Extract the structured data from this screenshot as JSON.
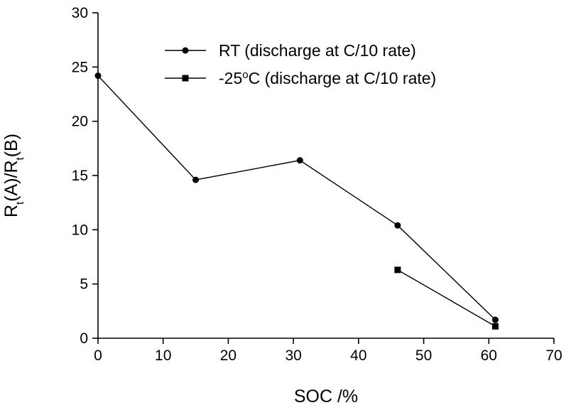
{
  "chart_data": {
    "type": "line",
    "xlabel": "SOC /%",
    "ylabel": {
      "parts": [
        {
          "text": "R",
          "sub": false
        },
        {
          "text": "t",
          "sub": true
        },
        {
          "text": "(A)/R",
          "sub": false
        },
        {
          "text": "t",
          "sub": true
        },
        {
          "text": "(B)",
          "sub": false
        }
      ]
    },
    "xlim": [
      0,
      70
    ],
    "ylim": [
      0,
      30
    ],
    "xticks": [
      "0",
      "10",
      "20",
      "30",
      "40",
      "50",
      "60",
      "70"
    ],
    "yticks": [
      "0",
      "5",
      "10",
      "15",
      "20",
      "25",
      "30"
    ],
    "grid": false,
    "legend_position": "top-right",
    "series": [
      {
        "name": "RT (discharge at C/10 rate)",
        "name_parts": [
          {
            "text": "RT (discharge at C/10 rate)",
            "sup": false
          }
        ],
        "marker": "circle",
        "color": "#000000",
        "x": [
          0,
          15,
          31,
          46,
          61
        ],
        "y": [
          24.2,
          14.6,
          16.4,
          10.4,
          1.7
        ]
      },
      {
        "name": "-25°C (discharge at C/10 rate)",
        "name_parts": [
          {
            "text": "-25",
            "sup": false
          },
          {
            "text": "o",
            "sup": true
          },
          {
            "text": "C (discharge at C/10 rate)",
            "sup": false
          }
        ],
        "marker": "square",
        "color": "#000000",
        "x": [
          46,
          61
        ],
        "y": [
          6.3,
          1.1
        ]
      }
    ]
  }
}
